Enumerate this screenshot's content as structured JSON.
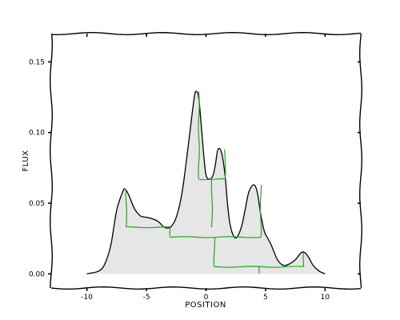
{
  "chart_data": {
    "type": "area",
    "style": "xkcd",
    "xlabel": "POSITION",
    "ylabel": "FLUX",
    "xlim": [
      -13,
      13
    ],
    "ylim": [
      -0.01,
      0.17
    ],
    "xticks": [
      -10,
      -5,
      0,
      5,
      10
    ],
    "xtick_labels": [
      "-10",
      "-5",
      "0",
      "5",
      "10"
    ],
    "yticks": [
      0.0,
      0.05,
      0.1,
      0.15
    ],
    "ytick_labels": [
      "0.00",
      "0.05",
      "0.10",
      "0.15"
    ],
    "series": [
      {
        "x": [
          -10,
          -9,
          -8.5,
          -8,
          -7.5,
          -7,
          -6.8,
          -6.5,
          -6,
          -5.5,
          -5,
          -4.5,
          -4,
          -3.5,
          -3,
          -2.5,
          -2,
          -1.5,
          -1,
          -0.8,
          -0.6,
          -0.4,
          -0.2,
          0,
          0.3,
          0.6,
          0.8,
          1,
          1.3,
          1.6,
          1.8,
          2,
          2.3,
          2.6,
          3,
          3.3,
          3.6,
          4,
          4.3,
          4.6,
          4.9,
          5.2,
          5.5,
          6,
          6.5,
          7,
          7.5,
          8,
          8.3,
          8.6,
          9,
          9.5,
          10
        ],
        "y": [
          0.0,
          0.002,
          0.007,
          0.02,
          0.045,
          0.058,
          0.06,
          0.056,
          0.046,
          0.041,
          0.04,
          0.039,
          0.037,
          0.033,
          0.033,
          0.04,
          0.058,
          0.09,
          0.124,
          0.129,
          0.124,
          0.105,
          0.085,
          0.07,
          0.067,
          0.07,
          0.078,
          0.088,
          0.086,
          0.07,
          0.05,
          0.036,
          0.027,
          0.026,
          0.034,
          0.046,
          0.058,
          0.063,
          0.058,
          0.042,
          0.03,
          0.025,
          0.02,
          0.01,
          0.006,
          0.007,
          0.01,
          0.015,
          0.015,
          0.012,
          0.006,
          0.002,
          0.0
        ],
        "fill": "#e6e6e6",
        "line_color": "#000000"
      }
    ],
    "dendrogram": {
      "color": "#2ca02c",
      "segments": [
        [
          [
            -6.7,
            0.06
          ],
          [
            -6.7,
            0.033
          ]
        ],
        [
          [
            -6.7,
            0.033
          ],
          [
            -3.0,
            0.033
          ]
        ],
        [
          [
            -3.0,
            0.033
          ],
          [
            -3.0,
            0.026
          ]
        ],
        [
          [
            -0.6,
            0.129
          ],
          [
            -0.6,
            0.067
          ]
        ],
        [
          [
            -0.6,
            0.067
          ],
          [
            1.6,
            0.067
          ]
        ],
        [
          [
            1.6,
            0.067
          ],
          [
            1.6,
            0.088
          ]
        ],
        [
          [
            0.5,
            0.067
          ],
          [
            0.5,
            0.033
          ]
        ],
        [
          [
            -3.0,
            0.026
          ],
          [
            4.6,
            0.026
          ]
        ],
        [
          [
            4.6,
            0.026
          ],
          [
            4.6,
            0.063
          ]
        ],
        [
          [
            0.7,
            0.026
          ],
          [
            0.7,
            0.005
          ]
        ],
        [
          [
            0.7,
            0.005
          ],
          [
            8.2,
            0.005
          ]
        ],
        [
          [
            8.2,
            0.005
          ],
          [
            8.2,
            0.015
          ]
        ],
        [
          [
            4.5,
            0.005
          ],
          [
            4.5,
            0.0
          ]
        ]
      ]
    }
  }
}
